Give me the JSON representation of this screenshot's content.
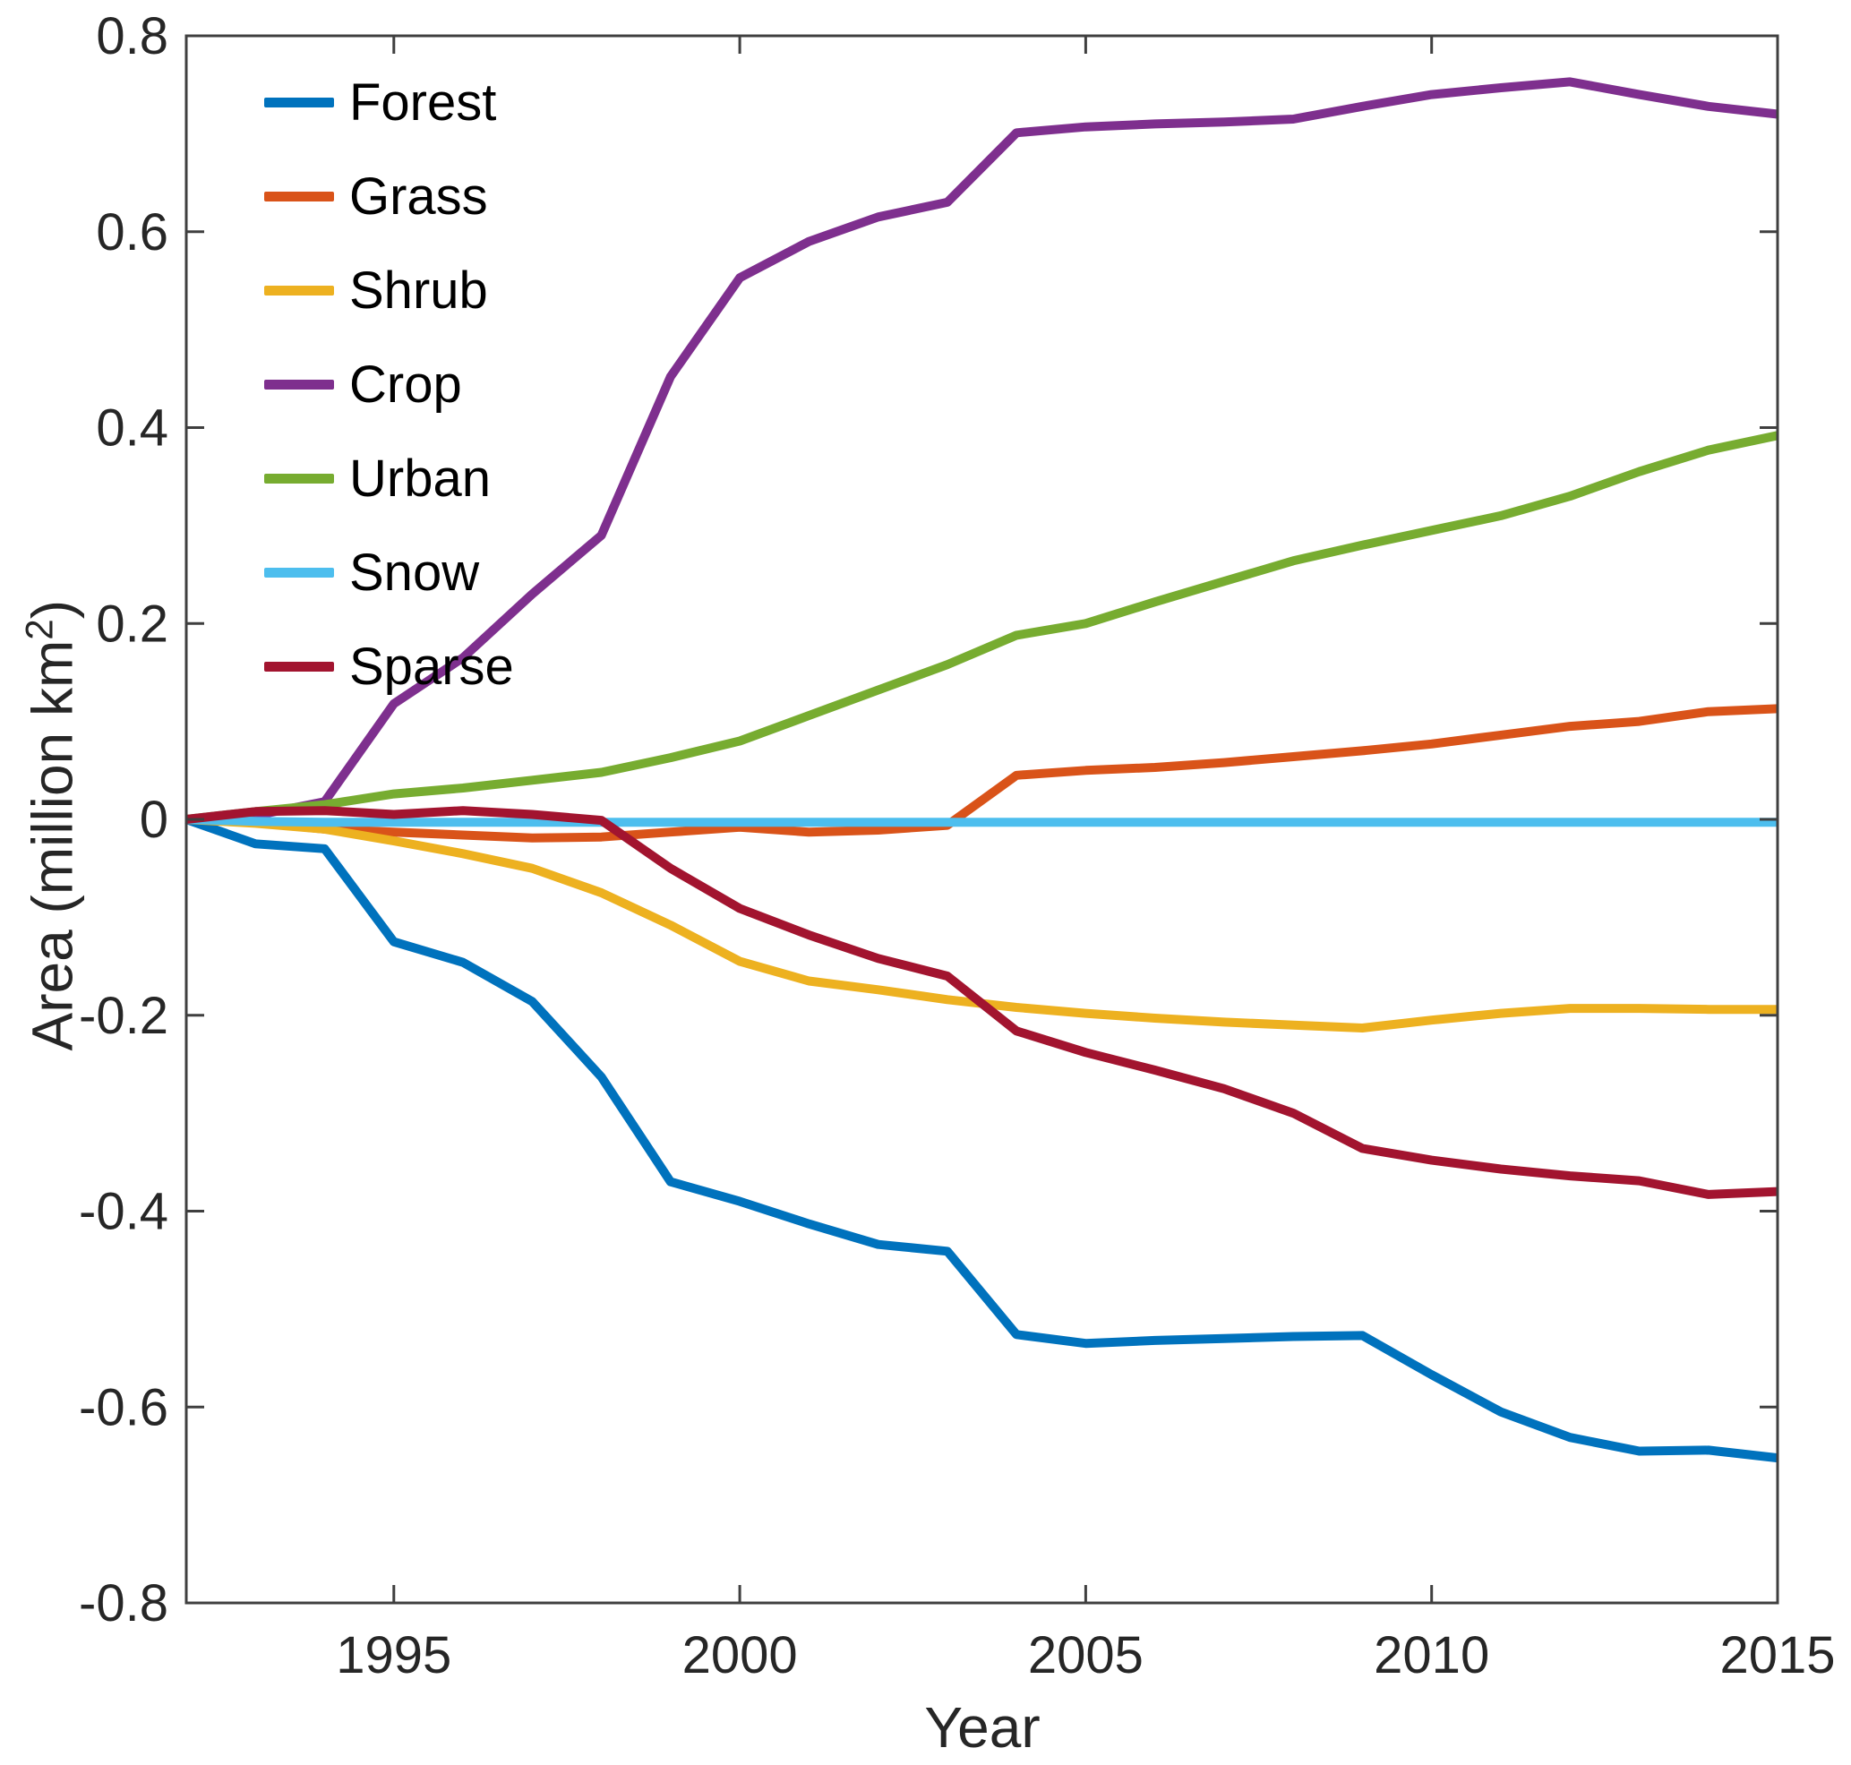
{
  "chart_data": {
    "type": "line",
    "title": "",
    "xlabel": "Year",
    "ylabel": "Area (million km2)",
    "ylabel_prefix": "Area (million km",
    "ylabel_sup": "2",
    "ylabel_suffix": ")",
    "xlim": [
      1992,
      2015
    ],
    "ylim": [
      -0.8,
      0.8
    ],
    "grid": false,
    "legend_position": "upper-left",
    "axis_color": "#3f3f3f",
    "tick_label_color": "#262626",
    "legend_text_color": "#000000",
    "xticks": [
      {
        "value": 1995,
        "label": "1995"
      },
      {
        "value": 2000,
        "label": "2000"
      },
      {
        "value": 2005,
        "label": "2005"
      },
      {
        "value": 2010,
        "label": "2010"
      },
      {
        "value": 2015,
        "label": "2015"
      }
    ],
    "yticks": [
      {
        "value": 0.8,
        "label": "0.8"
      },
      {
        "value": 0.6,
        "label": "0.6"
      },
      {
        "value": 0.4,
        "label": "0.4"
      },
      {
        "value": 0.2,
        "label": "0.2"
      },
      {
        "value": 0.0,
        "label": "0"
      },
      {
        "value": -0.2,
        "label": "-0.2"
      },
      {
        "value": -0.4,
        "label": "-0.4"
      },
      {
        "value": -0.6,
        "label": "-0.6"
      },
      {
        "value": -0.8,
        "label": "-0.8"
      }
    ],
    "years": [
      1992,
      1993,
      1994,
      1995,
      1996,
      1997,
      1998,
      1999,
      2000,
      2001,
      2002,
      2003,
      2004,
      2005,
      2006,
      2007,
      2008,
      2009,
      2010,
      2011,
      2012,
      2013,
      2014,
      2015
    ],
    "series": [
      {
        "name": "Forest",
        "color": "#0072BD",
        "values": [
          0.0,
          -0.025,
          -0.03,
          -0.125,
          -0.146,
          -0.186,
          -0.263,
          -0.37,
          -0.39,
          -0.413,
          -0.434,
          -0.441,
          -0.526,
          -0.535,
          -0.532,
          -0.53,
          -0.528,
          -0.527,
          -0.567,
          -0.605,
          -0.631,
          -0.645,
          -0.644,
          -0.652
        ]
      },
      {
        "name": "Grass",
        "color": "#D95319",
        "values": [
          0.0,
          -0.003,
          -0.01,
          -0.013,
          -0.016,
          -0.019,
          -0.018,
          -0.013,
          -0.008,
          -0.013,
          -0.011,
          -0.006,
          0.045,
          0.05,
          0.053,
          0.058,
          0.064,
          0.07,
          0.077,
          0.086,
          0.095,
          0.1,
          0.11,
          0.113
        ]
      },
      {
        "name": "Shrub",
        "color": "#EDB120",
        "values": [
          0.0,
          -0.004,
          -0.01,
          -0.022,
          -0.035,
          -0.05,
          -0.075,
          -0.108,
          -0.145,
          -0.165,
          -0.174,
          -0.184,
          -0.192,
          -0.198,
          -0.203,
          -0.207,
          -0.21,
          -0.213,
          -0.205,
          -0.198,
          -0.193,
          -0.193,
          -0.194,
          -0.194
        ]
      },
      {
        "name": "Crop",
        "color": "#7E2F8E",
        "values": [
          0.0,
          0.004,
          0.018,
          0.118,
          0.165,
          0.23,
          0.29,
          0.452,
          0.553,
          0.59,
          0.615,
          0.63,
          0.701,
          0.707,
          0.71,
          0.712,
          0.715,
          0.728,
          0.74,
          0.747,
          0.753,
          0.74,
          0.728,
          0.72
        ]
      },
      {
        "name": "Urban",
        "color": "#77AC30",
        "values": [
          0.0,
          0.008,
          0.015,
          0.026,
          0.032,
          0.04,
          0.048,
          0.063,
          0.08,
          0.106,
          0.132,
          0.158,
          0.188,
          0.2,
          0.222,
          0.243,
          0.264,
          0.28,
          0.295,
          0.31,
          0.33,
          0.355,
          0.377,
          0.392
        ]
      },
      {
        "name": "Snow",
        "color": "#4DBEEE",
        "values": [
          0.0,
          -0.002,
          -0.003,
          -0.003,
          -0.003,
          -0.003,
          -0.003,
          -0.003,
          -0.003,
          -0.003,
          -0.003,
          -0.003,
          -0.003,
          -0.003,
          -0.003,
          -0.003,
          -0.003,
          -0.003,
          -0.003,
          -0.003,
          -0.003,
          -0.003,
          -0.003,
          -0.003
        ]
      },
      {
        "name": "Sparse",
        "color": "#A2142F",
        "values": [
          0.0,
          0.008,
          0.009,
          0.005,
          0.009,
          0.005,
          -0.001,
          -0.05,
          -0.091,
          -0.118,
          -0.142,
          -0.16,
          -0.216,
          -0.238,
          -0.256,
          -0.275,
          -0.3,
          -0.336,
          -0.348,
          -0.357,
          -0.364,
          -0.369,
          -0.383,
          -0.38
        ]
      }
    ]
  }
}
